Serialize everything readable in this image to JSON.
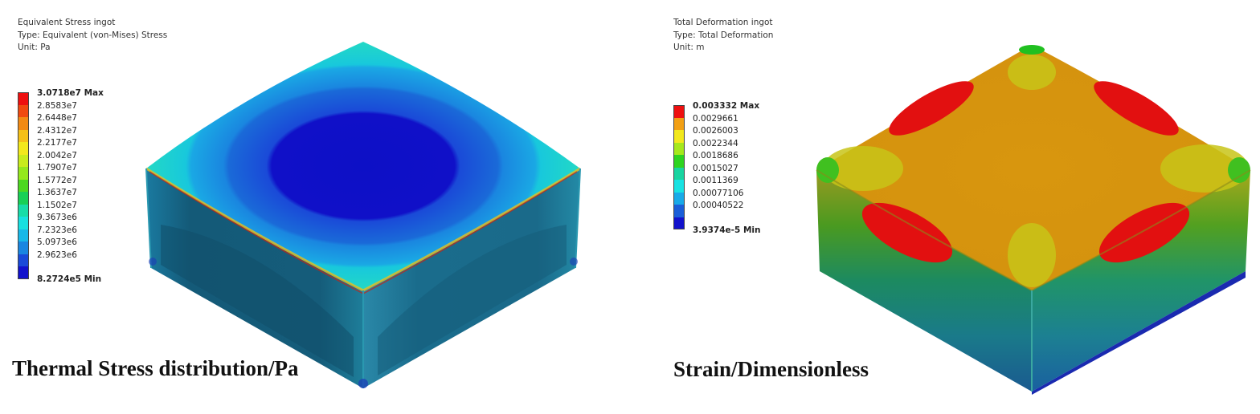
{
  "left_panel": {
    "header": {
      "name": "Equivalent Stress ingot",
      "type": "Type: Equivalent (von-Mises) Stress",
      "unit": "Unit: Pa"
    },
    "legend": [
      {
        "label": "3.0718e7 Max",
        "color": "#ee1010",
        "bold": true
      },
      {
        "label": "2.8583e7",
        "color": "#f04a10"
      },
      {
        "label": "2.6448e7",
        "color": "#f28a14"
      },
      {
        "label": "2.4312e7",
        "color": "#f5c018"
      },
      {
        "label": "2.2177e7",
        "color": "#f2e81c"
      },
      {
        "label": "2.0042e7",
        "color": "#c8ec1c"
      },
      {
        "label": "1.7907e7",
        "color": "#94e81c"
      },
      {
        "label": "1.5772e7",
        "color": "#4cd820"
      },
      {
        "label": "1.3637e7",
        "color": "#18d056"
      },
      {
        "label": "1.1502e7",
        "color": "#18dca8"
      },
      {
        "label": "9.3673e6",
        "color": "#18e0e0"
      },
      {
        "label": "7.2323e6",
        "color": "#18b8e8"
      },
      {
        "label": "5.0973e6",
        "color": "#1a86e0"
      },
      {
        "label": "2.9623e6",
        "color": "#1a4ad8"
      },
      {
        "label": "8.2724e5 Min",
        "color": "#1212cc",
        "bold": true
      }
    ],
    "caption": "Thermal Stress distribution/Pa"
  },
  "right_panel": {
    "header": {
      "name": "Total Deformation ingot",
      "type": "Type: Total Deformation",
      "unit": "Unit: m"
    },
    "legend": [
      {
        "label": "0.003332 Max",
        "color": "#ee1010",
        "bold": true
      },
      {
        "label": "0.0029661",
        "color": "#f2a014"
      },
      {
        "label": "0.0026003",
        "color": "#f2e81c"
      },
      {
        "label": "0.0022344",
        "color": "#a6e81c"
      },
      {
        "label": "0.0018686",
        "color": "#2ed420"
      },
      {
        "label": "0.0015027",
        "color": "#18d4a0"
      },
      {
        "label": "0.0011369",
        "color": "#18e2e2"
      },
      {
        "label": "0.00077106",
        "color": "#18aae8"
      },
      {
        "label": "0.00040522",
        "color": "#1a5ed8"
      },
      {
        "label": "3.9374e-5 Min",
        "color": "#1212cc",
        "bold": true
      }
    ],
    "caption": "Strain/Dimensionless"
  }
}
